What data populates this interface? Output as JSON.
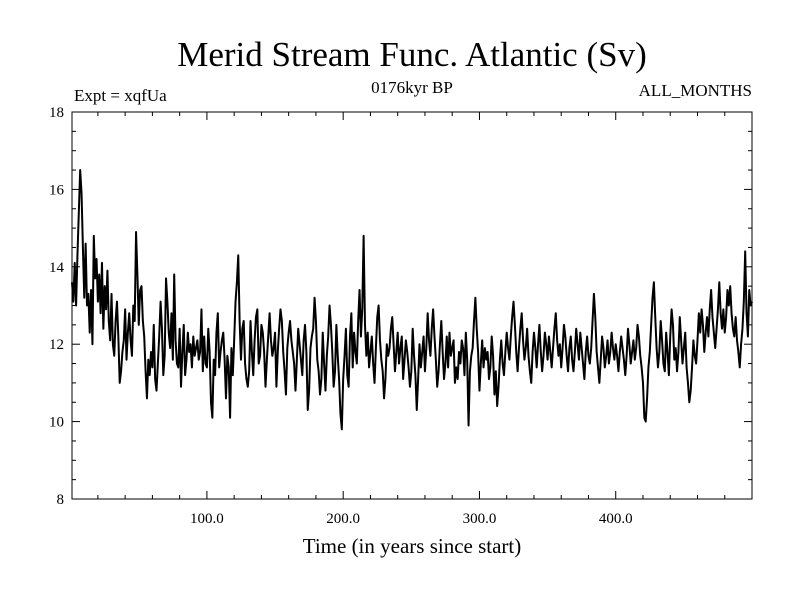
{
  "chart_data": {
    "type": "line",
    "title": "Merid Stream Func. Atlantic (Sv)",
    "subtitle_left": "Expt = xqfUa",
    "subtitle_center": "0176kyr BP",
    "subtitle_right": "ALL_MONTHS",
    "xlabel": "Time (in years since start)",
    "ylabel": "",
    "xlim": [
      1,
      500
    ],
    "ylim": [
      8,
      18
    ],
    "xticks": [
      100,
      200,
      300,
      400
    ],
    "xtick_labels": [
      "100.0",
      "200.0",
      "300.0",
      "400.0"
    ],
    "yticks": [
      8,
      10,
      12,
      14,
      16,
      18
    ],
    "ytick_labels": [
      "8",
      "10",
      "12",
      "14",
      "16",
      "18"
    ],
    "grid": false,
    "line_color": "#000000",
    "series": [
      {
        "name": "Merid Stream Func. Atlantic",
        "x_start": 1,
        "x_step": 1,
        "values": [
          13.6,
          13.1,
          14.1,
          13.0,
          14.3,
          15.4,
          16.5,
          15.9,
          14.5,
          13.2,
          14.6,
          13.0,
          13.3,
          12.3,
          13.4,
          12.0,
          14.8,
          13.7,
          14.2,
          13.1,
          13.8,
          12.8,
          14.1,
          12.4,
          13.5,
          12.9,
          13.9,
          12.6,
          12.1,
          13.3,
          12.0,
          11.7,
          12.6,
          13.1,
          12.2,
          11.0,
          11.3,
          11.8,
          12.1,
          12.9,
          11.6,
          12.3,
          12.8,
          12.1,
          11.7,
          13.0,
          12.6,
          14.9,
          13.8,
          12.5,
          13.4,
          13.5,
          12.6,
          12.2,
          11.3,
          10.6,
          11.6,
          11.2,
          11.8,
          11.4,
          12.5,
          11.1,
          10.8,
          11.5,
          12.2,
          13.1,
          12.4,
          11.2,
          11.7,
          13.7,
          13.1,
          12.3,
          11.9,
          12.8,
          11.6,
          13.8,
          12.1,
          11.5,
          11.4,
          12.4,
          10.9,
          11.8,
          12.5,
          11.2,
          11.6,
          12.3,
          11.8,
          12.0,
          11.4,
          12.2,
          11.7,
          11.9,
          12.1,
          11.6,
          11.8,
          12.9,
          11.3,
          12.2,
          11.5,
          11.4,
          12.4,
          11.8,
          10.5,
          10.1,
          11.6,
          11.2,
          12.3,
          12.8,
          11.4,
          11.8,
          12.1,
          12.3,
          11.6,
          10.6,
          11.7,
          11.4,
          10.1,
          11.9,
          11.2,
          12.1,
          13.1,
          13.6,
          14.3,
          12.6,
          11.6,
          12.4,
          12.6,
          11.5,
          11.1,
          10.9,
          11.3,
          12.6,
          11.8,
          11.2,
          12.1,
          12.7,
          12.9,
          11.5,
          11.7,
          12.5,
          12.3,
          11.8,
          10.9,
          11.6,
          12.2,
          12.8,
          12.1,
          11.7,
          11.9,
          12.3,
          10.9,
          11.8,
          12.4,
          12.9,
          12.6,
          11.8,
          11.3,
          10.7,
          11.9,
          12.3,
          12.6,
          12.1,
          11.8,
          11.5,
          10.8,
          11.6,
          12.4,
          12.0,
          11.6,
          11.2,
          12.1,
          12.5,
          11.8,
          10.3,
          10.8,
          11.9,
          12.2,
          12.4,
          13.2,
          12.6,
          11.6,
          11.3,
          10.7,
          11.1,
          12.3,
          11.5,
          10.8,
          11.7,
          12.2,
          13.0,
          12.5,
          11.8,
          10.9,
          11.3,
          12.5,
          11.7,
          11.1,
          10.2,
          9.8,
          11.1,
          11.7,
          12.4,
          11.2,
          10.9,
          12.2,
          12.8,
          11.4,
          12.3,
          11.8,
          11.5,
          12.6,
          13.4,
          12.2,
          12.9,
          14.8,
          12.5,
          11.7,
          12.3,
          11.4,
          11.8,
          12.2,
          11.5,
          11.0,
          11.9,
          12.7,
          13.0,
          12.1,
          11.6,
          11.3,
          10.6,
          11.1,
          12.0,
          11.7,
          11.9,
          12.4,
          12.7,
          12.0,
          11.3,
          11.8,
          12.3,
          11.5,
          11.9,
          12.2,
          11.1,
          11.6,
          12.1,
          11.8,
          11.4,
          10.9,
          11.3,
          12.4,
          11.7,
          11.2,
          10.3,
          11.1,
          12.0,
          11.4,
          11.8,
          12.2,
          11.3,
          11.9,
          12.8,
          12.1,
          11.7,
          12.4,
          12.9,
          12.2,
          11.6,
          10.9,
          11.3,
          12.0,
          12.6,
          11.8,
          11.1,
          11.5,
          12.2,
          11.4,
          12.3,
          11.7,
          11.9,
          12.1,
          11.0,
          11.4,
          11.1,
          11.8,
          11.5,
          12.1,
          11.9,
          11.2,
          12.3,
          11.6,
          9.9,
          11.3,
          11.7,
          11.9,
          12.6,
          13.2,
          12.4,
          11.8,
          10.8,
          11.5,
          12.1,
          11.4,
          11.9,
          11.6,
          11.8,
          11.1,
          11.4,
          12.2,
          11.7,
          10.7,
          11.3,
          10.4,
          10.9,
          11.6,
          12.1,
          11.5,
          11.2,
          11.8,
          12.3,
          11.9,
          11.6,
          12.2,
          12.7,
          13.1,
          12.5,
          11.8,
          11.3,
          11.9,
          12.4,
          12.8,
          12.1,
          11.6,
          11.9,
          12.4,
          11.7,
          11.3,
          11.0,
          11.8,
          12.3,
          11.9,
          11.4,
          12.0,
          12.5,
          11.8,
          11.3,
          11.7,
          12.3,
          12.0,
          11.6,
          12.2,
          11.8,
          11.4,
          11.9,
          12.4,
          12.8,
          12.1,
          11.7,
          12.0,
          11.4,
          11.9,
          12.5,
          12.2,
          11.7,
          11.3,
          11.9,
          12.2,
          11.6,
          11.3,
          11.8,
          12.4,
          12.0,
          11.6,
          12.3,
          11.9,
          11.5,
          11.1,
          11.8,
          12.2,
          11.7,
          11.5,
          11.9,
          12.6,
          13.3,
          12.7,
          11.8,
          11.4,
          11.0,
          11.6,
          12.2,
          11.9,
          11.4,
          11.7,
          12.1,
          11.5,
          11.8,
          12.3,
          11.9,
          11.6,
          12.0,
          11.7,
          11.3,
          11.8,
          12.2,
          11.9,
          11.6,
          11.2,
          11.7,
          12.4,
          12.0,
          11.5,
          11.8,
          12.1,
          11.6,
          11.9,
          12.5,
          12.2,
          11.7,
          11.4,
          11.0,
          10.1,
          10.0,
          10.6,
          11.4,
          11.8,
          12.5,
          13.2,
          13.6,
          12.7,
          11.9,
          11.4,
          11.8,
          12.6,
          12.1,
          11.5,
          11.3,
          12.3,
          11.8,
          11.2,
          12.2,
          12.9,
          12.5,
          11.6,
          11.9,
          11.3,
          11.8,
          12.7,
          12.1,
          11.5,
          11.9,
          12.3,
          11.4,
          11.0,
          10.5,
          10.8,
          11.4,
          12.1,
          11.7,
          11.5,
          12.1,
          12.8,
          12.3,
          12.9,
          12.5,
          11.8,
          12.3,
          12.7,
          12.2,
          12.9,
          13.4,
          12.7,
          12.3,
          11.9,
          12.4,
          12.9,
          13.6,
          12.8,
          12.4,
          12.9,
          12.3,
          12.7,
          13.4,
          13.0,
          13.5,
          12.8,
          12.4,
          12.2,
          12.7,
          12.1,
          11.8,
          11.4,
          12.0,
          12.4,
          13.1,
          14.4,
          12.8,
          12.2,
          13.4,
          13.0,
          13.1
        ]
      }
    ]
  }
}
